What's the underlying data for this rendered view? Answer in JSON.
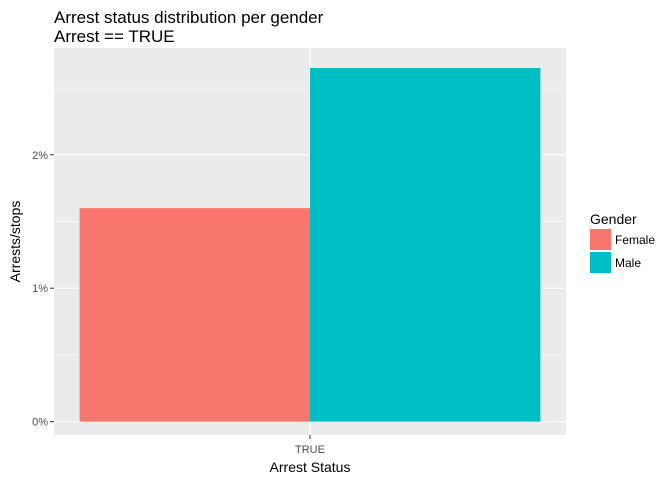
{
  "chart_data": {
    "type": "bar",
    "title": "Arrest status distribution per gender",
    "subtitle": "Arrest == TRUE",
    "xlabel": "Arrest Status",
    "ylabel": "Arrests/stops",
    "categories": [
      "TRUE"
    ],
    "series": [
      {
        "name": "Female",
        "values": [
          1.6
        ],
        "color": "#F8766D"
      },
      {
        "name": "Male",
        "values": [
          2.65
        ],
        "color": "#00BFC4"
      }
    ],
    "ylim": [
      -0.1,
      2.8
    ],
    "yticks": [
      0,
      1,
      2
    ],
    "ytick_labels": [
      "0%",
      "1%",
      "2%"
    ],
    "y_unit": "%",
    "grid": true,
    "legend": {
      "title": "Gender",
      "position": "right",
      "entries": [
        "Female",
        "Male"
      ]
    },
    "colors": {
      "panel_background": "#EBEBEB",
      "grid": "#FFFFFF"
    }
  }
}
